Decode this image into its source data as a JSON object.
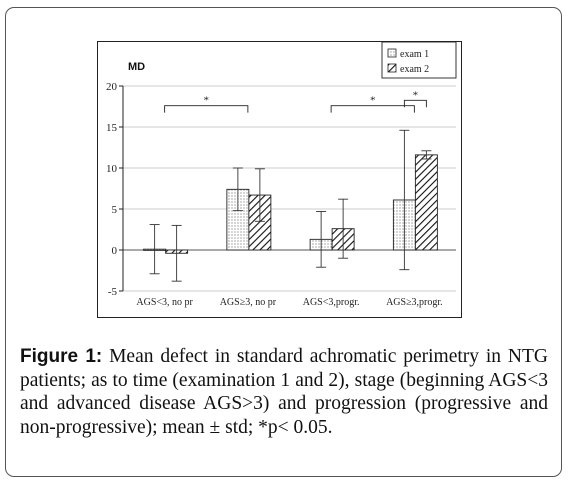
{
  "figure": {
    "caption_label": "Figure 1:",
    "caption_text": " Mean defect in standard achromatic perimetry in NTG patients; as to time (examination 1 and 2), stage (beginning AGS<3 and advanced disease AGS>3) and progression (progressive and non-progressive); mean ± std; *p< 0.05."
  },
  "chart_data": {
    "type": "bar",
    "ylabel": "MD",
    "ylim": [
      -5,
      20
    ],
    "yticks": [
      -5,
      0,
      5,
      10,
      15,
      20
    ],
    "grid": "horizontal",
    "legend_position": "top-right",
    "categories": [
      "AGS<3, no pr",
      "AGS≥3, no pr",
      "AGS<3,progr.",
      "AGS≥3,progr."
    ],
    "series": [
      {
        "name": "exam 1",
        "pattern": "dots",
        "values": [
          0.1,
          7.4,
          1.3,
          6.1
        ],
        "std": [
          3.0,
          2.6,
          3.4,
          8.5
        ]
      },
      {
        "name": "exam 2",
        "pattern": "hatch",
        "values": [
          -0.4,
          6.7,
          2.6,
          11.6
        ],
        "std": [
          3.4,
          3.2,
          3.6,
          0.5
        ]
      }
    ],
    "significance": [
      {
        "label": "*",
        "from": "AGS<3, no pr",
        "to": "AGS≥3, no pr"
      },
      {
        "label": "*",
        "from": "AGS<3,progr.",
        "to": "AGS≥3,progr."
      },
      {
        "label": "*",
        "from": "exam 1",
        "to": "exam 2",
        "within": "AGS≥3,progr."
      }
    ],
    "colors": {
      "bar_fill": "#ffffff",
      "bar_stroke": "#222222",
      "grid": "#bbbbbb"
    }
  }
}
